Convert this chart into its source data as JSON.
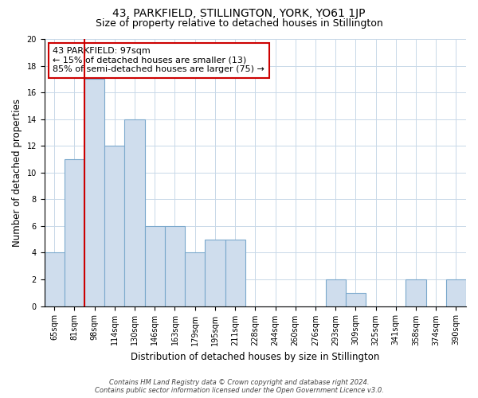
{
  "title": "43, PARKFIELD, STILLINGTON, YORK, YO61 1JP",
  "subtitle": "Size of property relative to detached houses in Stillington",
  "xlabel": "Distribution of detached houses by size in Stillington",
  "ylabel": "Number of detached properties",
  "bin_labels": [
    "65sqm",
    "81sqm",
    "98sqm",
    "114sqm",
    "130sqm",
    "146sqm",
    "163sqm",
    "179sqm",
    "195sqm",
    "211sqm",
    "228sqm",
    "244sqm",
    "260sqm",
    "276sqm",
    "293sqm",
    "309sqm",
    "325sqm",
    "341sqm",
    "358sqm",
    "374sqm",
    "390sqm"
  ],
  "bar_values": [
    4,
    11,
    17,
    12,
    14,
    6,
    6,
    4,
    5,
    5,
    0,
    0,
    0,
    0,
    2,
    1,
    0,
    0,
    2,
    0,
    2
  ],
  "highlight_bin_index": 2,
  "bar_color": "#cfdded",
  "bar_edge_color": "#7aa8cc",
  "highlight_line_color": "#cc0000",
  "annotation_text_line1": "43 PARKFIELD: 97sqm",
  "annotation_text_line2": "← 15% of detached houses are smaller (13)",
  "annotation_text_line3": "85% of semi-detached houses are larger (75) →",
  "annotation_box_color": "#ffffff",
  "annotation_box_edge_color": "#cc0000",
  "ylim": [
    0,
    20
  ],
  "yticks": [
    0,
    2,
    4,
    6,
    8,
    10,
    12,
    14,
    16,
    18,
    20
  ],
  "footer_line1": "Contains HM Land Registry data © Crown copyright and database right 2024.",
  "footer_line2": "Contains public sector information licensed under the Open Government Licence v3.0.",
  "background_color": "#ffffff",
  "grid_color": "#c8d8e8",
  "title_fontsize": 10,
  "subtitle_fontsize": 9,
  "axis_label_fontsize": 8.5,
  "tick_fontsize": 7,
  "annotation_fontsize": 8,
  "footer_fontsize": 6
}
